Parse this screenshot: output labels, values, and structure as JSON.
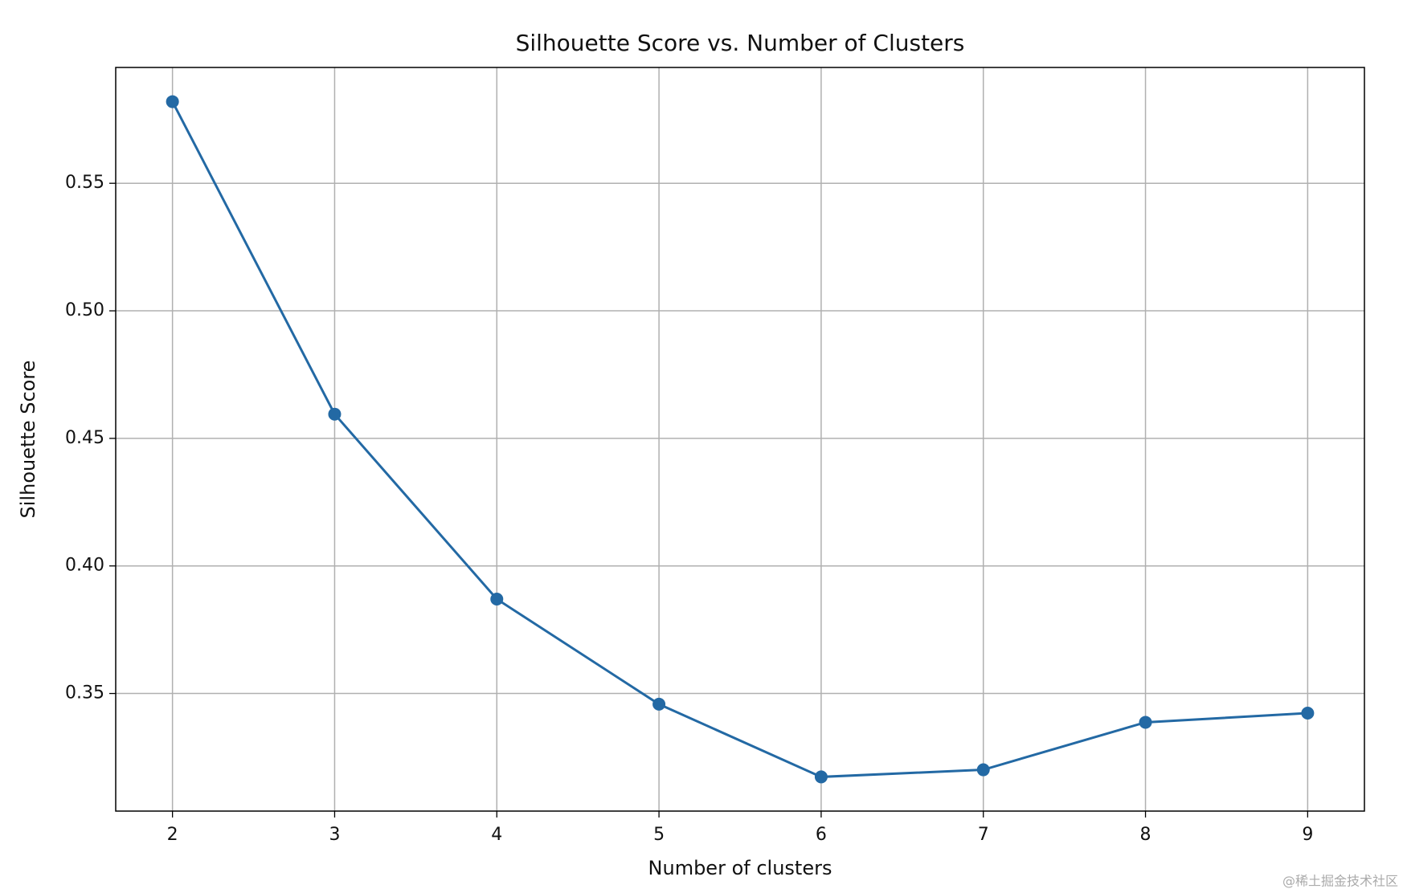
{
  "chart_data": {
    "type": "line",
    "title": "Silhouette Score vs. Number of Clusters",
    "x_label": "Number of clusters",
    "y_label": "Silhouette Score",
    "x": [
      2,
      3,
      4,
      5,
      6,
      7,
      8,
      9
    ],
    "series": [
      {
        "name": "Silhouette Score",
        "color": "#2369a4",
        "values": [
          0.582,
          0.4595,
          0.387,
          0.3458,
          0.3173,
          0.3201,
          0.3387,
          0.3423
        ]
      }
    ],
    "xlim": [
      1.65,
      9.35
    ],
    "xticks": [
      2,
      3,
      4,
      5,
      6,
      7,
      8,
      9
    ],
    "ylim": [
      0.3039,
      0.5954
    ],
    "yticks": [
      {
        "value": 0.35,
        "label": "0.35"
      },
      {
        "value": 0.4,
        "label": "0.40"
      },
      {
        "value": 0.45,
        "label": "0.45"
      },
      {
        "value": 0.5,
        "label": "0.50"
      },
      {
        "value": 0.55,
        "label": "0.55"
      }
    ],
    "grid": true,
    "watermark": "@稀土掘金技术社区"
  }
}
